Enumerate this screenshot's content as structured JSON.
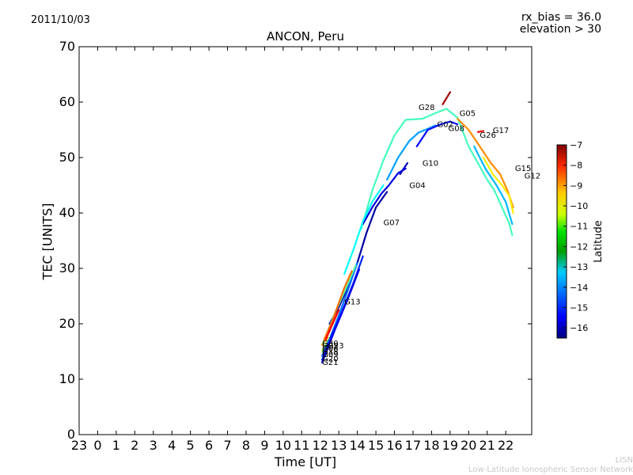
{
  "header": {
    "date": "2011/10/03",
    "rx_bias": "rx_bias = 36.0",
    "elevation": "elevation > 30"
  },
  "footer": {
    "line1": "LISN",
    "line2": "Low-Latitude Ionospheric Sensor Network"
  },
  "chart_data": {
    "type": "line",
    "title": "ANCON, Peru",
    "xlabel": "Time [UT]",
    "ylabel": "TEC [UNITS]",
    "xlim": [
      0,
      24.4
    ],
    "ylim": [
      0,
      70
    ],
    "yticks": [
      0,
      10,
      20,
      30,
      40,
      50,
      60,
      70
    ],
    "xtick_labels": [
      "23",
      "0",
      "1",
      "2",
      "3",
      "4",
      "5",
      "6",
      "7",
      "8",
      "9",
      "10",
      "11",
      "12",
      "13",
      "14",
      "15",
      "16",
      "17",
      "18",
      "19",
      "20",
      "21",
      "22"
    ],
    "colorbar": {
      "label": "Latitude",
      "range": [
        -16.5,
        -7
      ],
      "ticks": [
        -7,
        -8,
        -9,
        -10,
        -11,
        -12,
        -13,
        -14,
        -15,
        -16
      ]
    },
    "series": [
      {
        "name": "G28",
        "lat": -7.3,
        "label_at": [
          18.3,
          58.6
        ],
        "points": [
          [
            19.6,
            59.6
          ],
          [
            20.0,
            61.8
          ]
        ]
      },
      {
        "name": "G05",
        "lat": -12.3,
        "label_at": [
          20.5,
          57.5
        ],
        "points": [
          [
            15.2,
            37
          ],
          [
            15.8,
            44
          ],
          [
            16.4,
            49.5
          ],
          [
            17.0,
            54
          ],
          [
            17.6,
            56.8
          ],
          [
            18.5,
            57
          ],
          [
            19.2,
            58
          ],
          [
            19.8,
            58.8
          ],
          [
            20.4,
            57.2
          ],
          [
            21.0,
            52
          ],
          [
            21.5,
            49
          ],
          [
            22.0,
            46
          ],
          [
            22.4,
            44
          ],
          [
            22.8,
            41
          ],
          [
            23.2,
            38
          ],
          [
            23.35,
            36
          ]
        ]
      },
      {
        "name": "G02",
        "lat": -13.8,
        "label_at": [
          19.3,
          55.5
        ],
        "points": [
          [
            16.6,
            46
          ],
          [
            17.2,
            50
          ],
          [
            17.8,
            53
          ],
          [
            18.3,
            54.5
          ],
          [
            18.8,
            55.2
          ],
          [
            19.2,
            55.8
          ]
        ]
      },
      {
        "name": "G08",
        "lat": -15.2,
        "label_at": [
          19.9,
          54.8
        ],
        "points": [
          [
            18.2,
            52
          ],
          [
            18.8,
            55
          ],
          [
            19.5,
            56
          ],
          [
            20.0,
            56.5
          ],
          [
            20.4,
            56
          ]
        ]
      },
      {
        "name": "G17",
        "lat": -9.5,
        "label_at": [
          22.3,
          54.4
        ],
        "points": [
          [
            20.4,
            57
          ],
          [
            21.0,
            55
          ],
          [
            21.6,
            52
          ],
          [
            22.2,
            49
          ],
          [
            22.7,
            47
          ],
          [
            23.1,
            44
          ],
          [
            23.4,
            41
          ]
        ]
      },
      {
        "name": "G26",
        "lat": -8.0,
        "label_at": [
          21.6,
          53.6
        ],
        "points": [
          [
            21.5,
            54.6
          ],
          [
            21.8,
            54.8
          ]
        ]
      },
      {
        "name": "G15",
        "lat": -13.6,
        "label_at": [
          23.5,
          47.6
        ],
        "points": [
          [
            21.3,
            52
          ],
          [
            21.9,
            48
          ],
          [
            22.5,
            45
          ],
          [
            23.0,
            42
          ],
          [
            23.35,
            38
          ]
        ]
      },
      {
        "name": "G12",
        "lat": -10.4,
        "label_at": [
          24.0,
          46.2
        ],
        "points": [
          [
            21.8,
            50
          ],
          [
            22.3,
            47
          ],
          [
            22.8,
            45
          ],
          [
            23.2,
            43
          ],
          [
            23.4,
            40
          ]
        ]
      },
      {
        "name": "G10",
        "lat": -16.0,
        "label_at": [
          18.5,
          48.5
        ],
        "points": [
          [
            17.3,
            47
          ],
          [
            17.5,
            48
          ],
          [
            17.7,
            49
          ]
        ]
      },
      {
        "name": "G04",
        "lat": -15.6,
        "label_at": [
          17.8,
          44.5
        ],
        "points": [
          [
            15.3,
            38
          ],
          [
            15.8,
            41
          ],
          [
            16.3,
            43.5
          ],
          [
            16.7,
            45
          ],
          [
            17.2,
            47.2
          ],
          [
            17.6,
            48
          ]
        ]
      },
      {
        "name": "G07",
        "lat": -12.9,
        "label_at": [
          16.4,
          37.8
        ],
        "points": [
          [
            14.3,
            29
          ],
          [
            14.8,
            33.5
          ],
          [
            15.3,
            38.5
          ],
          [
            15.8,
            42
          ],
          [
            16.4,
            45
          ]
        ]
      },
      {
        "name": "G13",
        "lat": -16.2,
        "label_at": [
          14.3,
          23.5
        ],
        "points": [
          [
            13.5,
            20
          ],
          [
            14.0,
            23
          ],
          [
            14.6,
            27.5
          ],
          [
            15.0,
            31
          ],
          [
            15.5,
            36.5
          ],
          [
            16.0,
            41
          ],
          [
            16.6,
            43.8
          ]
        ]
      },
      {
        "name": "G23",
        "lat": -9.8,
        "label_at": [
          13.4,
          15.6
        ],
        "points": [
          [
            13.1,
            16.2
          ],
          [
            13.4,
            17.5
          ]
        ]
      },
      {
        "name": "G06",
        "lat": -11.5,
        "label_at": [
          13.1,
          15.0
        ],
        "points": [
          [
            13.1,
            15.1
          ],
          [
            13.4,
            16.8
          ],
          [
            13.9,
            20
          ]
        ]
      },
      {
        "name": "G09",
        "lat": -14.3,
        "label_at": [
          13.1,
          14.0
        ],
        "points": [
          [
            13.1,
            14.2
          ],
          [
            13.5,
            17.2
          ],
          [
            14.0,
            21.5
          ],
          [
            14.5,
            26.2
          ],
          [
            15.0,
            31
          ]
        ]
      },
      {
        "name": "G20",
        "lat": -15.0,
        "label_at": [
          13.1,
          13.2
        ],
        "points": [
          [
            13.1,
            13.5
          ],
          [
            13.6,
            17.8
          ],
          [
            14.2,
            22.4
          ],
          [
            14.8,
            27.5
          ],
          [
            15.3,
            32.2
          ]
        ]
      },
      {
        "name": "G21",
        "lat": -15.5,
        "label_at": [
          13.1,
          12.6
        ],
        "points": [
          [
            13.1,
            13.0
          ],
          [
            13.8,
            19
          ],
          [
            14.5,
            24.6
          ],
          [
            15.1,
            29.8
          ]
        ]
      },
      {
        "name": "G18",
        "lat": -12.1,
        "label_at": [
          13.1,
          14.5
        ],
        "points": [
          [
            13.15,
            16.6
          ],
          [
            13.8,
            22
          ],
          [
            14.4,
            26.5
          ],
          [
            14.9,
            30.5
          ]
        ]
      },
      {
        "name": "G25",
        "lat": -9.2,
        "label_at": [
          13.1,
          15.6
        ],
        "points": [
          [
            13.2,
            17
          ],
          [
            13.7,
            21
          ],
          [
            14.3,
            26.5
          ],
          [
            14.7,
            29.5
          ]
        ]
      },
      {
        "name": "G30",
        "lat": -8.2,
        "label_at": [
          13.1,
          16.0
        ],
        "points": [
          [
            13.3,
            17.2
          ],
          [
            13.6,
            19.5
          ],
          [
            14.0,
            22.5
          ]
        ]
      }
    ]
  }
}
